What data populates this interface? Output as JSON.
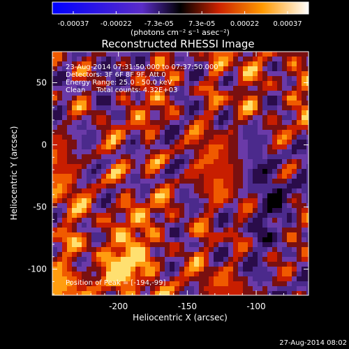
{
  "chart_data": {
    "type": "heatmap",
    "title": "Reconstructed RHESSI Image",
    "xlabel": "Heliocentric X (arcsec)",
    "ylabel": "Heliocentric Y (arcsec)",
    "xlim": [
      -248,
      -62
    ],
    "ylim": [
      -121,
      75
    ],
    "x_ticks": [
      -200,
      -150,
      -100
    ],
    "y_ticks": [
      50,
      0,
      -50,
      -100
    ],
    "colorbar": {
      "ticks": [
        "-0.00037",
        "-0.00022",
        "-7.3e-05",
        "7.3e-05",
        "0.00022",
        "0.00037"
      ],
      "label": "(photons cm⁻² s⁻¹ asec⁻²)",
      "range": [
        -0.00037,
        0.00037
      ]
    },
    "annotations": {
      "time_range": "23-Aug-2014 07:31:50.000 to 07:37:50.000",
      "detectors": "Detectors: 3F 6F 8F 9F, Att 0",
      "energy": "Energy Range: 25.0 - 50.0 keV",
      "clean": "Clean     Total counts: 4.32E+03",
      "peak": "Position of Peak = [-194,-99]"
    },
    "peak_position": [
      -194,
      -99
    ],
    "colors": {
      "background": "#000000",
      "axes": "#ffffff"
    }
  },
  "footer": {
    "date": "27-Aug-2014 08:02"
  }
}
